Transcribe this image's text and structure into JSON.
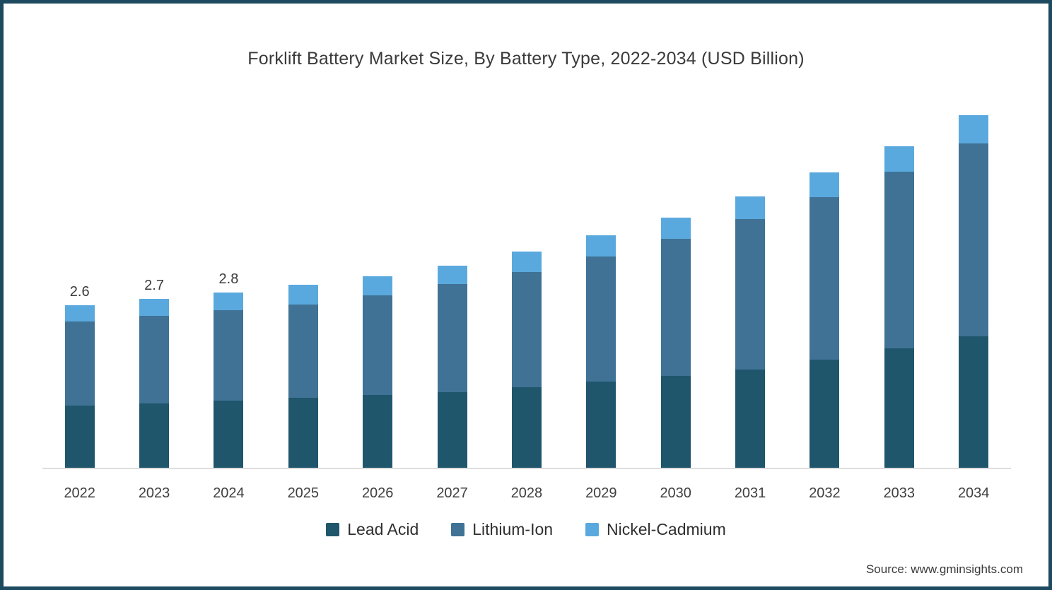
{
  "title": "Forklift Battery Market Size, By Battery Type, 2022-2034 (USD Billion)",
  "source": "Source: www.gminsights.com",
  "colors": {
    "lead_acid": "#1f566c",
    "lithium_ion": "#3f7295",
    "nickel_cadmium": "#5aa9de",
    "border": "#1d4a5e",
    "axis_line": "#dedede",
    "text": "#3a3a3a"
  },
  "chart_data": {
    "type": "bar",
    "stacked": true,
    "title": "Forklift Battery Market Size, By Battery Type, 2022-2034 (USD Billion)",
    "unit": "USD Billion",
    "categories": [
      "2022",
      "2023",
      "2024",
      "2025",
      "2026",
      "2027",
      "2028",
      "2029",
      "2030",
      "2031",
      "2032",
      "2033",
      "2034"
    ],
    "series": [
      {
        "name": "Lead Acid",
        "color_key": "lead_acid",
        "values": [
          0.99,
          1.03,
          1.07,
          1.12,
          1.16,
          1.21,
          1.29,
          1.38,
          1.47,
          1.57,
          1.73,
          1.91,
          2.1
        ]
      },
      {
        "name": "Lithium-Ion",
        "color_key": "lithium_ion",
        "values": [
          1.34,
          1.4,
          1.45,
          1.49,
          1.59,
          1.72,
          1.83,
          1.99,
          2.18,
          2.4,
          2.59,
          2.81,
          3.08
        ]
      },
      {
        "name": "Nickel-Cadmium",
        "color_key": "nickel_cadmium",
        "values": [
          0.27,
          0.27,
          0.28,
          0.31,
          0.31,
          0.3,
          0.33,
          0.34,
          0.34,
          0.36,
          0.4,
          0.41,
          0.45
        ]
      }
    ],
    "totals": [
      2.6,
      2.7,
      2.8,
      2.92,
      3.06,
      3.23,
      3.45,
      3.71,
      3.99,
      4.33,
      4.72,
      5.13,
      5.63
    ],
    "data_labels": [
      "2.6",
      "2.7",
      "2.8",
      "",
      "",
      "",
      "",
      "",
      "",
      "",
      "",
      "",
      ""
    ],
    "xlabel": "",
    "ylabel": "",
    "ylim": [
      0,
      6
    ],
    "grid": false,
    "legend_position": "bottom"
  }
}
